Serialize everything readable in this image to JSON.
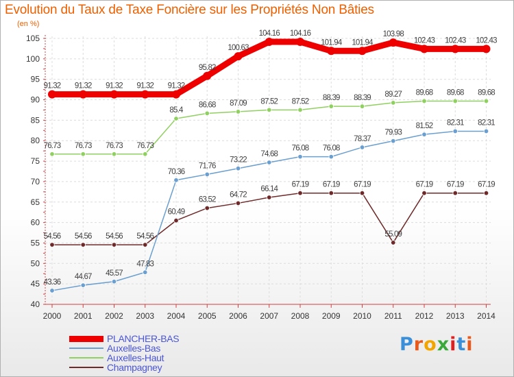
{
  "title": "Evolution du Taux de Taxe Foncière sur les Propriétés Non Bâties",
  "subtitle": "(en %)",
  "logo": {
    "text": "Proxiti",
    "letter_colors": [
      "#3a8fd8",
      "#e85a1c",
      "#f2a500",
      "#3aa83a",
      "#e02020",
      "#3a8fd8",
      "#e85a1c"
    ]
  },
  "chart_data": {
    "type": "line",
    "title": "Evolution du Taux de Taxe Foncière sur les Propriétés Non Bâties",
    "ylabel": "(en %)",
    "xlabel": "",
    "ylim": [
      40,
      105
    ],
    "yticks": [
      40,
      45,
      50,
      55,
      60,
      65,
      70,
      75,
      80,
      85,
      90,
      95,
      100,
      105
    ],
    "grid": true,
    "legend_position": "bottom-left",
    "categories": [
      "2000",
      "2001",
      "2002",
      "2003",
      "2004",
      "2005",
      "2006",
      "2007",
      "2008",
      "2009",
      "2010",
      "2011",
      "2012",
      "2013",
      "2014"
    ],
    "series": [
      {
        "name": "PLANCHER-BAS",
        "color": "#ee0000",
        "values": [
          91.32,
          91.32,
          91.32,
          91.32,
          91.32,
          95.82,
          100.63,
          104.16,
          104.16,
          101.94,
          101.94,
          103.98,
          102.43,
          102.43,
          102.43
        ],
        "labels": [
          "91.32",
          "91.32",
          "91.32",
          "91.32",
          "91.32",
          "95.82",
          "100.63",
          "104.16",
          "104.16",
          "101.94",
          "101.94",
          "103.98",
          "102.43",
          "102.43",
          "102.43"
        ]
      },
      {
        "name": "Auxelles-Bas",
        "color": "#6a9fcf",
        "values": [
          43.36,
          44.67,
          45.57,
          47.83,
          70.36,
          71.76,
          73.22,
          74.68,
          76.08,
          76.08,
          78.37,
          79.93,
          81.52,
          82.31,
          82.31
        ],
        "labels": [
          "43.36",
          "44.67",
          "45.57",
          "47.83",
          "70.36",
          "71.76",
          "73.22",
          "74.68",
          "76.08",
          "76.08",
          "78.37",
          "79.93",
          "81.52",
          "82.31",
          "82.31"
        ]
      },
      {
        "name": "Auxelles-Haut",
        "color": "#90d060",
        "values": [
          76.73,
          76.73,
          76.73,
          76.73,
          85.4,
          86.68,
          87.09,
          87.52,
          87.52,
          88.39,
          88.39,
          89.27,
          89.68,
          89.68,
          89.68
        ],
        "labels": [
          "76.73",
          "76.73",
          "76.73",
          "76.73",
          "85.4",
          "86.68",
          "87.09",
          "87.52",
          "87.52",
          "88.39",
          "88.39",
          "89.27",
          "89.68",
          "89.68",
          "89.68"
        ]
      },
      {
        "name": "Champagney",
        "color": "#6e2a2a",
        "values": [
          54.56,
          54.56,
          54.56,
          54.56,
          60.49,
          63.52,
          64.72,
          66.14,
          67.19,
          67.19,
          67.19,
          55.09,
          67.19,
          67.19,
          67.19
        ],
        "labels": [
          "54.56",
          "54.56",
          "54.56",
          "54.56",
          "60.49",
          "63.52",
          "64.72",
          "66.14",
          "67.19",
          "67.19",
          "67.19",
          "55.09",
          "67.19",
          "67.19",
          "67.19"
        ]
      }
    ]
  }
}
